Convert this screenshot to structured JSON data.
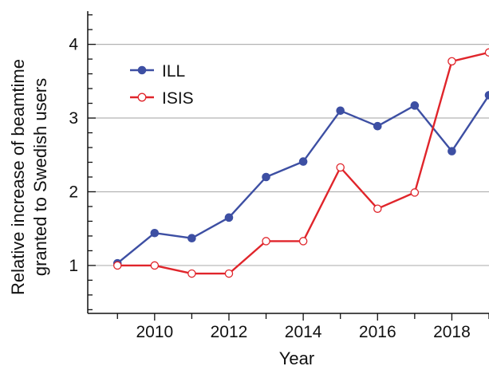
{
  "chart_data": {
    "type": "line",
    "title": "",
    "xlabel": "Year",
    "ylabel_lines": [
      "Relative increase of beamtime",
      "granted to Swedish users"
    ],
    "xlim": [
      2008.2,
      2019
    ],
    "ylim": [
      0.35,
      4.45
    ],
    "x_ticks": [
      2010,
      2012,
      2014,
      2016,
      2018
    ],
    "y_ticks": [
      1,
      2,
      3,
      4
    ],
    "gridlines_y": [
      1,
      2,
      3,
      4
    ],
    "grid": true,
    "legend_position": "top-left",
    "series": [
      {
        "name": "ILL",
        "color": "#3d4fa3",
        "marker": "filled-circle",
        "x": [
          2009,
          2010,
          2011,
          2012,
          2013,
          2014,
          2015,
          2016,
          2017,
          2018,
          2019
        ],
        "y": [
          1.03,
          1.44,
          1.37,
          1.65,
          2.2,
          2.41,
          3.1,
          2.89,
          3.17,
          2.55,
          3.31
        ]
      },
      {
        "name": "ISIS",
        "color": "#e0252b",
        "marker": "open-circle",
        "x": [
          2009,
          2010,
          2011,
          2012,
          2013,
          2014,
          2015,
          2016,
          2017,
          2018,
          2019
        ],
        "y": [
          1.0,
          1.0,
          0.89,
          0.89,
          1.33,
          1.33,
          2.33,
          1.77,
          1.99,
          3.77,
          3.89
        ]
      }
    ]
  }
}
